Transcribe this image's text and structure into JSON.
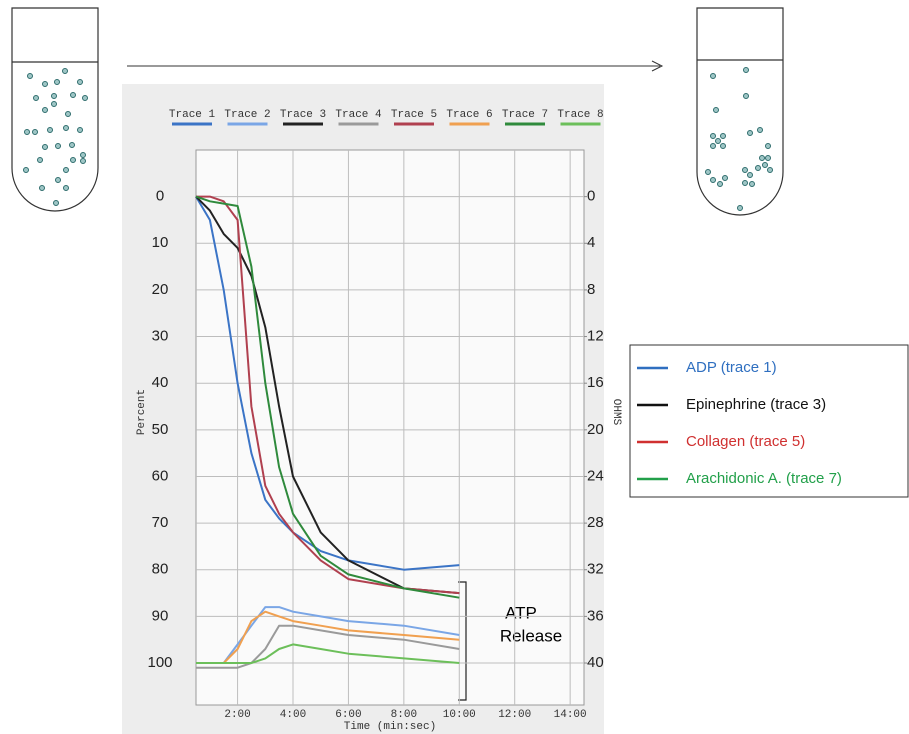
{
  "chart_data": {
    "type": "line",
    "xlabel": "Time (min:sec)",
    "ylabel": "Percent",
    "y2label": "OHMS",
    "x": [
      0.5,
      1,
      1.5,
      2,
      2.5,
      3,
      3.5,
      4,
      5,
      6,
      8,
      10
    ],
    "xlim": [
      0.5,
      14.5
    ],
    "xticks": [
      {
        "value": 2,
        "label": "2:00"
      },
      {
        "value": 4,
        "label": "4:00"
      },
      {
        "value": 6,
        "label": "6:00"
      },
      {
        "value": 8,
        "label": "8:00"
      },
      {
        "value": 10,
        "label": "10:00"
      },
      {
        "value": 12,
        "label": "12:00"
      },
      {
        "value": 14,
        "label": "14:00"
      }
    ],
    "ylim": [
      109,
      -10
    ],
    "yticks": [
      0,
      10,
      20,
      30,
      40,
      50,
      60,
      70,
      80,
      90,
      100
    ],
    "y2lim": [
      43.6,
      -4
    ],
    "y2ticks": [
      0,
      4,
      8,
      12,
      16,
      20,
      24,
      28,
      32,
      36,
      40
    ],
    "grid": true,
    "series": [
      {
        "name": "Trace 1",
        "color": "#3b74c6",
        "values": [
          0,
          5,
          20,
          40,
          55,
          65,
          69,
          72,
          76,
          78,
          80,
          79
        ]
      },
      {
        "name": "Trace 2",
        "color": "#7aa6e6",
        "values": [
          100,
          100,
          100,
          96,
          92,
          88,
          88,
          89,
          90,
          91,
          92,
          94
        ]
      },
      {
        "name": "Trace 3",
        "color": "#222222",
        "values": [
          0,
          3,
          8,
          11,
          17,
          28,
          45,
          60,
          72,
          78,
          84,
          85
        ]
      },
      {
        "name": "Trace 4",
        "color": "#9a9a9a",
        "values": [
          101,
          101,
          101,
          101,
          100,
          97,
          92,
          92,
          93,
          94,
          95,
          97
        ]
      },
      {
        "name": "Trace 5",
        "color": "#b0404f",
        "values": [
          0,
          0,
          1,
          5,
          45,
          62,
          68,
          72,
          78,
          82,
          84,
          85
        ]
      },
      {
        "name": "Trace 6",
        "color": "#f0a050",
        "values": [
          100,
          100,
          100,
          97,
          91,
          89,
          90,
          91,
          92,
          93,
          94,
          95
        ]
      },
      {
        "name": "Trace 7",
        "color": "#2f8a3c",
        "values": [
          0,
          1,
          1.5,
          2,
          15,
          40,
          58,
          68,
          77,
          81,
          84,
          86
        ]
      },
      {
        "name": "Trace 8",
        "color": "#6cbf5a",
        "values": [
          100,
          100,
          100,
          100,
          100,
          99,
          97,
          96,
          97,
          98,
          99,
          100
        ]
      }
    ],
    "legend_box": [
      {
        "label": "ADP (trace 1)",
        "color": "#2f6fc0"
      },
      {
        "label": "Epinephrine (trace 3)",
        "color": "#111111"
      },
      {
        "label": "Collagen (trace 5)",
        "color": "#d03030"
      },
      {
        "label": "Arachidonic A. (trace 7)",
        "color": "#22a04a"
      }
    ],
    "annotation": [
      "ATP",
      "Release"
    ]
  }
}
